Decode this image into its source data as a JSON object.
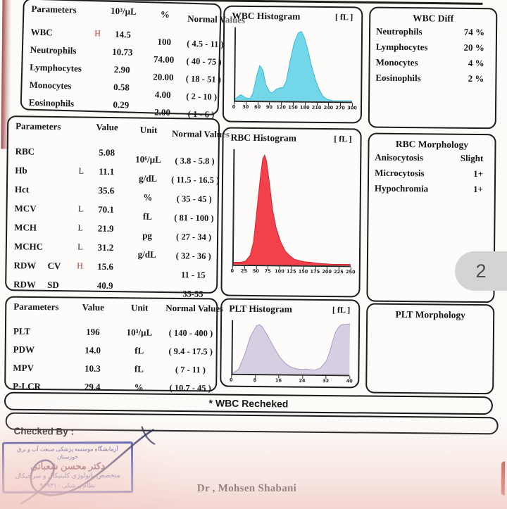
{
  "page": {
    "badge": "2",
    "recheck_note": "*  WBC Recheked",
    "checked_by": "Checked By :",
    "doctor": "Dr , Mohsen Shabani"
  },
  "stamp": {
    "line1": "آزمایشگاه موسسه پزشکی صنعت آب و برق خوزستان",
    "line2": "دکتر محسن شعبانی",
    "line3": "متخصص پاتولوژی کلینیکال و سرجیکال",
    "line4": "نظام پزشکی : ۹۶۹۳۱"
  },
  "wbc_table": {
    "headers": {
      "param": "Parameters",
      "value": "10³/µL",
      "percent": "%",
      "normal": "Normal Values"
    },
    "rows": [
      {
        "param": "WBC",
        "flag": "H",
        "value": "14.5",
        "percent": "100",
        "normal": "( 4.5 - 11 )"
      },
      {
        "param": "Neutrophils",
        "flag": "",
        "value": "10.73",
        "percent": "74.00",
        "normal": "( 40 - 75 )"
      },
      {
        "param": "Lymphocytes",
        "flag": "",
        "value": "2.90",
        "percent": "20.00",
        "normal": "( 18 - 51 )"
      },
      {
        "param": "Monocytes",
        "flag": "",
        "value": "0.58",
        "percent": "4.00",
        "normal": "( 2 - 10 )"
      },
      {
        "param": "Eosinophils",
        "flag": "",
        "value": "0.29",
        "percent": "2.00",
        "normal": "( 1 - 6 )"
      }
    ]
  },
  "rbc_table": {
    "headers": {
      "param": "Parameters",
      "value": "Value",
      "unit": "Unit",
      "normal": "Normal Values"
    },
    "rows": [
      {
        "param": "RBC",
        "sub": "",
        "flag": "",
        "value": "5.08",
        "unit": "10⁶/µL",
        "normal": "( 3.8 - 5.8 )"
      },
      {
        "param": "Hb",
        "sub": "",
        "flag": "L",
        "value": "11.1",
        "unit": "g/dL",
        "normal": "( 11.5 - 16.5 )"
      },
      {
        "param": "Hct",
        "sub": "",
        "flag": "",
        "value": "35.6",
        "unit": "%",
        "normal": "( 35 - 45 )"
      },
      {
        "param": "MCV",
        "sub": "",
        "flag": "L",
        "value": "70.1",
        "unit": "fL",
        "normal": "( 81 - 100 )"
      },
      {
        "param": "MCH",
        "sub": "",
        "flag": "L",
        "value": "21.9",
        "unit": "pg",
        "normal": "( 27 - 34 )"
      },
      {
        "param": "MCHC",
        "sub": "",
        "flag": "L",
        "value": "31.2",
        "unit": "g/dL",
        "normal": "( 32 - 36 )"
      },
      {
        "param": "RDW",
        "sub": "CV",
        "flag": "H",
        "value": "15.6",
        "unit": "",
        "normal": "11 - 15"
      },
      {
        "param": "RDW",
        "sub": "SD",
        "flag": "",
        "value": "40.9",
        "unit": "",
        "normal": "35-55"
      }
    ]
  },
  "plt_table": {
    "headers": {
      "param": "Parameters",
      "value": "Value",
      "unit": "Unit",
      "normal": "Normal Values"
    },
    "rows": [
      {
        "param": "PLT",
        "value": "196",
        "unit": "10³/µL",
        "normal": "( 140 - 400 )"
      },
      {
        "param": "PDW",
        "value": "14.0",
        "unit": "fL",
        "normal": "( 9.4 - 17.5 )"
      },
      {
        "param": "MPV",
        "value": "10.3",
        "unit": "fL",
        "normal": "( 7 - 11 )"
      },
      {
        "param": "P-LCR",
        "value": "29.4",
        "unit": "%",
        "normal": "( 10.7 - 45 )"
      }
    ]
  },
  "wbc_diff": {
    "title": "WBC Diff",
    "rows": [
      {
        "label": "Neutrophils",
        "value": "74 %"
      },
      {
        "label": "Lymphocytes",
        "value": "20 %"
      },
      {
        "label": "Monocytes",
        "value": "4 %"
      },
      {
        "label": "Eosinophils",
        "value": "2 %"
      }
    ]
  },
  "rbc_morphology": {
    "title": "RBC Morphology",
    "rows": [
      {
        "label": "Anisocytosis",
        "value": "Slight"
      },
      {
        "label": "Microcytosis",
        "value": "1+"
      },
      {
        "label": "Hypochromia",
        "value": "1+"
      }
    ]
  },
  "plt_morphology": {
    "title": "PLT Morphology",
    "rows": []
  },
  "histograms": {
    "wbc": {
      "type": "area",
      "title": "WBC Histogram",
      "unit_label": "[ fL ]",
      "xmax": 300,
      "ticks": [
        0,
        30,
        60,
        90,
        120,
        150,
        180,
        210,
        240,
        270,
        300
      ],
      "fill": "#73d7e9",
      "stroke": "#3bb9d6",
      "points": [
        [
          0,
          2
        ],
        [
          8,
          6
        ],
        [
          15,
          8
        ],
        [
          25,
          4
        ],
        [
          38,
          3
        ],
        [
          45,
          10
        ],
        [
          55,
          35
        ],
        [
          62,
          48
        ],
        [
          70,
          42
        ],
        [
          78,
          22
        ],
        [
          88,
          12
        ],
        [
          95,
          11
        ],
        [
          105,
          16
        ],
        [
          115,
          18
        ],
        [
          122,
          18
        ],
        [
          130,
          26
        ],
        [
          140,
          55
        ],
        [
          150,
          80
        ],
        [
          160,
          93
        ],
        [
          168,
          95
        ],
        [
          175,
          88
        ],
        [
          185,
          70
        ],
        [
          195,
          48
        ],
        [
          205,
          30
        ],
        [
          215,
          16
        ],
        [
          225,
          7
        ],
        [
          235,
          3
        ],
        [
          250,
          1
        ],
        [
          300,
          1
        ]
      ]
    },
    "rbc": {
      "type": "area",
      "title": "RBC Histogram",
      "unit_label": "[ fL ]",
      "xmax": 250,
      "ticks": [
        0,
        25,
        50,
        75,
        100,
        125,
        150,
        175,
        200,
        225,
        250
      ],
      "fill": "#f2414b",
      "stroke": "#d32630",
      "points": [
        [
          0,
          2
        ],
        [
          15,
          2
        ],
        [
          25,
          3
        ],
        [
          35,
          8
        ],
        [
          42,
          20
        ],
        [
          48,
          45
        ],
        [
          55,
          75
        ],
        [
          60,
          92
        ],
        [
          64,
          95
        ],
        [
          68,
          90
        ],
        [
          75,
          70
        ],
        [
          82,
          48
        ],
        [
          90,
          32
        ],
        [
          100,
          20
        ],
        [
          110,
          12
        ],
        [
          120,
          8
        ],
        [
          130,
          5
        ],
        [
          140,
          4
        ],
        [
          150,
          3
        ],
        [
          165,
          2.5
        ],
        [
          175,
          2
        ],
        [
          190,
          1.5
        ],
        [
          210,
          1
        ],
        [
          250,
          1
        ]
      ]
    },
    "plt": {
      "type": "area",
      "title": "PLT Histogram",
      "unit_label": "[ fL ]",
      "xmax": 40,
      "ticks": [
        0,
        8,
        16,
        24,
        32,
        40
      ],
      "fill": "#d6cfe2",
      "stroke": "#a79fc0",
      "points": [
        [
          0,
          1
        ],
        [
          2,
          8
        ],
        [
          4,
          35
        ],
        [
          6,
          70
        ],
        [
          8,
          90
        ],
        [
          9,
          92
        ],
        [
          10,
          88
        ],
        [
          12,
          70
        ],
        [
          14,
          50
        ],
        [
          16,
          32
        ],
        [
          18,
          20
        ],
        [
          20,
          13
        ],
        [
          22,
          10
        ],
        [
          24,
          9
        ],
        [
          25,
          10
        ],
        [
          26,
          9
        ],
        [
          28,
          8
        ],
        [
          30,
          12
        ],
        [
          32,
          25
        ],
        [
          33,
          40
        ],
        [
          34,
          60
        ],
        [
          35,
          78
        ],
        [
          36,
          88
        ],
        [
          37,
          93
        ],
        [
          38,
          94
        ],
        [
          40,
          95
        ]
      ]
    }
  },
  "colors": {
    "flag_high": "#b0372b",
    "stamp_blue": "#3a49ab",
    "badge_bg": "#d4d4d4",
    "wbc_fill": "#73d7e9",
    "rbc_fill": "#f2414b",
    "plt_fill": "#d6cfe2"
  }
}
